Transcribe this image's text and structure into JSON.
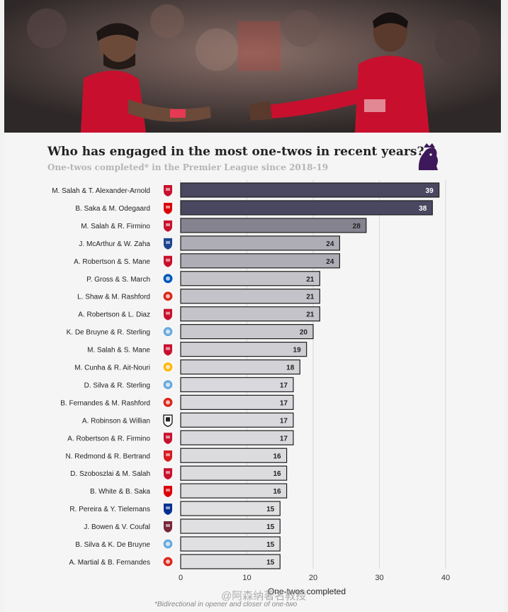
{
  "header": {
    "title": "Who has engaged in the most one-twos in recent years?",
    "subtitle": "One-twos completed* in the Premier League since 2018-19",
    "footnote": "*Bidirectional in opener and closer of one-two",
    "watermark": "@阿森纳著名教授"
  },
  "logo": {
    "name": "premier-league-lion-icon",
    "color": "#3d195b"
  },
  "photo": {
    "name": "salah-and-alexander-arnold-photo",
    "kit_color": "#c8102e"
  },
  "chart_data": {
    "type": "bar",
    "orientation": "horizontal",
    "title": "Who has engaged in the most one-twos in recent years?",
    "subtitle": "One-twos completed* in the Premier League since 2018-19",
    "xlabel": "One-twos completed",
    "xlim": [
      0,
      40
    ],
    "xticks": [
      0,
      10,
      20,
      30,
      40
    ],
    "grid": true,
    "categories": [
      "M. Salah & T. Alexander-Arnold",
      "B. Saka & M. Odegaard",
      "M. Salah & R. Firmino",
      "J. McArthur & W. Zaha",
      "A. Robertson & S. Mane",
      "P. Gross & S. March",
      "L. Shaw & M. Rashford",
      "A. Robertson & L. Diaz",
      "K. De Bruyne & R. Sterling",
      "M. Salah & S. Mane",
      "M. Cunha & R. Ait-Nouri",
      "D. Silva & R. Sterling",
      "B. Fernandes & M. Rashford",
      "A. Robinson & Willian",
      "A. Robertson & R. Firmino",
      "N. Redmond & R. Bertrand",
      "D. Szoboszlai & M. Salah",
      "B. White & B. Saka",
      "R. Pereira & Y. Tielemans",
      "J. Bowen & V. Coufal",
      "B. Silva & K. De Bruyne",
      "A. Martial & B. Fernandes"
    ],
    "values": [
      39,
      38,
      28,
      24,
      24,
      21,
      21,
      21,
      20,
      19,
      18,
      17,
      17,
      17,
      17,
      16,
      16,
      16,
      15,
      15,
      15,
      15
    ],
    "clubs": [
      "liverpool",
      "arsenal",
      "liverpool",
      "crystal-palace",
      "liverpool",
      "brighton",
      "man-utd",
      "liverpool",
      "man-city",
      "liverpool",
      "wolves",
      "man-city",
      "man-utd",
      "fulham",
      "liverpool",
      "southampton",
      "liverpool",
      "arsenal",
      "leicester",
      "west-ham",
      "man-city",
      "man-utd"
    ],
    "club_colors": {
      "liverpool": "#c8102e",
      "arsenal": "#db0007",
      "crystal-palace": "#1b458f",
      "brighton": "#0057b8",
      "man-utd": "#da291c",
      "man-city": "#6cabdd",
      "wolves": "#fdb913",
      "fulham": "#222222",
      "southampton": "#d71920",
      "leicester": "#003090",
      "west-ham": "#7a263a"
    },
    "bar_colors": [
      "#4a4760",
      "#4a4760",
      "#85838f",
      "#aeadb5",
      "#aeadb5",
      "#c4c3c9",
      "#c4c3c9",
      "#c4c3c9",
      "#c9c8cd",
      "#cfced3",
      "#d3d2d6",
      "#d9d8dc",
      "#d9d8dc",
      "#d9d8dc",
      "#d9d8dc",
      "#dcdcdf",
      "#dcdcdf",
      "#dcdcdf",
      "#e0e0e2",
      "#e0e0e2",
      "#e0e0e2",
      "#e0e0e2"
    ],
    "label_colors": [
      "#ffffff",
      "#ffffff",
      "#222222",
      "#222222",
      "#222222",
      "#222222",
      "#222222",
      "#222222",
      "#222222",
      "#222222",
      "#222222",
      "#222222",
      "#222222",
      "#222222",
      "#222222",
      "#222222",
      "#222222",
      "#222222",
      "#222222",
      "#222222",
      "#222222",
      "#222222"
    ]
  }
}
